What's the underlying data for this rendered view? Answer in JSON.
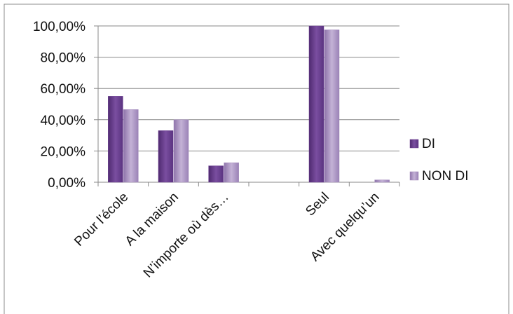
{
  "chart_data": {
    "type": "bar",
    "title": "",
    "categories": [
      "Pour l’école",
      "A la maison",
      "N’importe où dès…",
      "",
      "Seul",
      "Avec quelqu’un"
    ],
    "series": [
      {
        "name": "DI",
        "values": [
          55,
          33,
          10.5,
          0,
          100,
          0
        ],
        "color": "#6a3d8f"
      },
      {
        "name": "NON DI",
        "values": [
          46.5,
          40,
          12.5,
          0,
          97.5,
          1.5
        ],
        "color": "#a48bbd"
      }
    ],
    "ylim": [
      0,
      100
    ],
    "y_ticks": [
      "0,00%",
      "20,00%",
      "40,00%",
      "60,00%",
      "80,00%",
      "100,00%"
    ],
    "y_tick_values": [
      0,
      20,
      40,
      60,
      80,
      100
    ],
    "grid": true,
    "legend_position": "right"
  }
}
